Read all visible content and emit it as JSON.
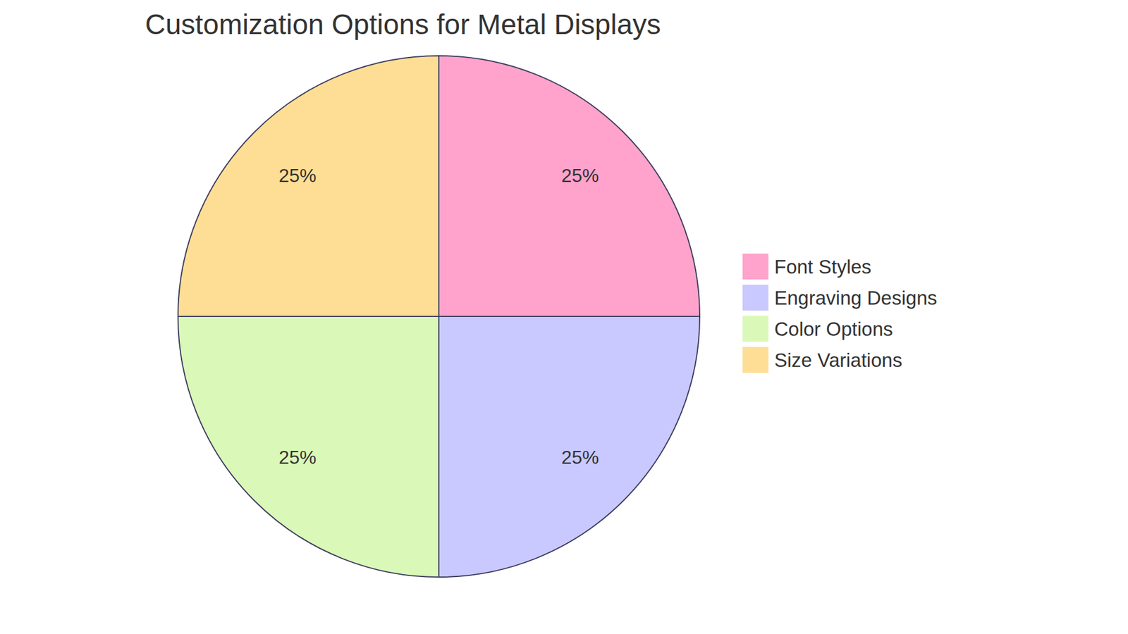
{
  "chart_data": {
    "type": "pie",
    "title": "Customization Options for Metal Displays",
    "categories": [
      "Font Styles",
      "Engraving Designs",
      "Color Options",
      "Size Variations"
    ],
    "values": [
      25,
      25,
      25,
      25
    ],
    "value_labels": [
      "25%",
      "25%",
      "25%",
      "25%"
    ],
    "colors": [
      "#ffa3cc",
      "#c9c9ff",
      "#daf9b8",
      "#fede94"
    ],
    "data_labels": true,
    "legend": "right"
  }
}
